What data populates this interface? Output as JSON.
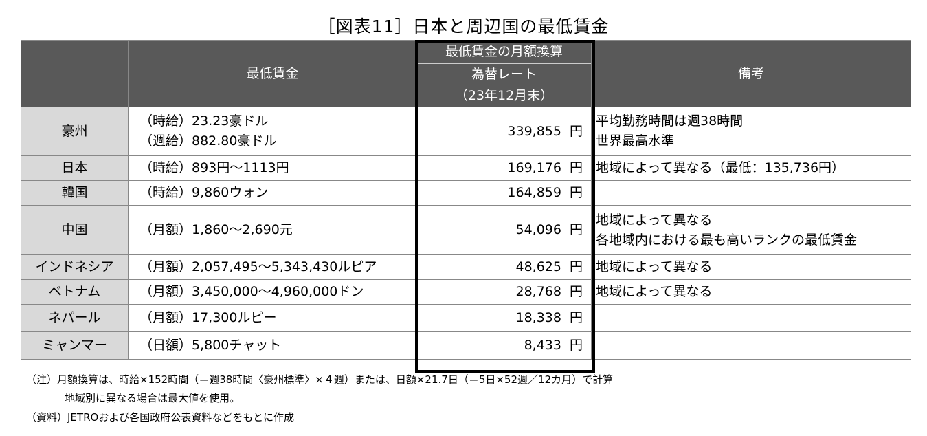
{
  "title": "［図表11］日本と周辺国の最低賃金",
  "header": {
    "wage": "最低賃金",
    "monthly_line1": "最低賃金の月額換算",
    "monthly_line2": "為替レート",
    "monthly_line3": "（23年12月末）",
    "notes": "備考"
  },
  "unit": "円",
  "rows": [
    {
      "country": "豪州",
      "wage": [
        "（時給）23.23豪ドル",
        "（週給）882.80豪ドル"
      ],
      "amount": "339,855",
      "note": [
        "平均勤務時間は週38時間",
        "世界最高水準"
      ]
    },
    {
      "country": "日本",
      "wage": [
        "（時給）893円～1113円"
      ],
      "amount": "169,176",
      "note": [
        "地域によって異なる（最低：135,736円）"
      ]
    },
    {
      "country": "韓国",
      "wage": [
        "（時給）9,860ウォン"
      ],
      "amount": "164,859",
      "note": [
        ""
      ]
    },
    {
      "country": "中国",
      "wage": [
        "（月額）1,860～2,690元"
      ],
      "amount": "54,096",
      "note": [
        "地域によって異なる",
        "各地域内における最も高いランクの最低賃金"
      ]
    },
    {
      "country": "インドネシア",
      "wage": [
        "（月額）2,057,495～5,343,430ルピア"
      ],
      "amount": "48,625",
      "note": [
        "地域によって異なる"
      ]
    },
    {
      "country": "ベトナム",
      "wage": [
        "（月額）3,450,000～4,960,000ドン"
      ],
      "amount": "28,768",
      "note": [
        "地域によって異なる"
      ]
    },
    {
      "country": "ネパール",
      "wage": [
        "（月額）17,300ルピー"
      ],
      "amount": "18,338",
      "note": [
        ""
      ]
    },
    {
      "country": "ミャンマー",
      "wage": [
        "（日額）5,800チャット"
      ],
      "amount": "8,433",
      "note": [
        ""
      ]
    }
  ],
  "footnotes": {
    "note1": "（注）月額換算は、時給×152時間（＝週38時間〈豪州標準〉×４週）または、日額×21.7日（＝5日×52週／12カ月）で計算",
    "note2": "地域別に異なる場合は最大値を使用。",
    "source": "（資料）JETROおよび各国政府公表資料などをもとに作成"
  }
}
